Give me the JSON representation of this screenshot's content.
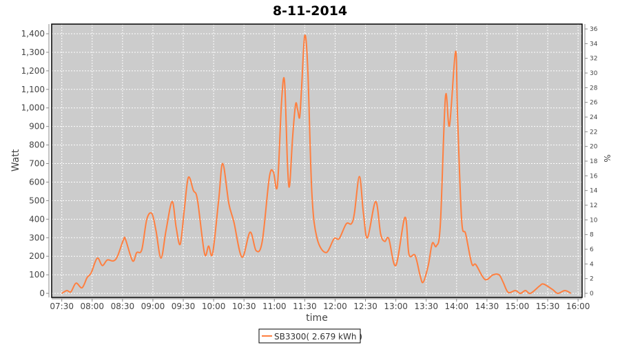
{
  "chart_data": {
    "type": "line",
    "title": "8-11-2014",
    "xlabel": "time",
    "ylabel": "Watt",
    "y2label": "%",
    "xlim": [
      "07:20",
      "16:04"
    ],
    "ylim": [
      -22,
      1452
    ],
    "y2lim": [
      -0.56,
      36.66
    ],
    "x_ticks": [
      "07:30",
      "08:00",
      "08:30",
      "09:00",
      "09:30",
      "10:00",
      "10:30",
      "11:00",
      "11:30",
      "12:00",
      "12:30",
      "13:00",
      "13:30",
      "14:00",
      "14:30",
      "15:00",
      "15:30",
      "16:00"
    ],
    "y_ticks": [
      0,
      100,
      200,
      300,
      400,
      500,
      600,
      700,
      800,
      900,
      1000,
      1100,
      1200,
      1300,
      1400
    ],
    "y2_ticks": [
      0,
      2,
      4,
      6,
      8,
      10,
      12,
      14,
      16,
      18,
      20,
      22,
      24,
      26,
      28,
      30,
      32,
      34,
      36
    ],
    "grid": true,
    "legend_position": "bottom",
    "colors": {
      "series": "#ff7f3f",
      "plot_background": "#cccccc",
      "grid": "#ffffff"
    },
    "series": [
      {
        "name": "SB3300( 2.679 kWh )",
        "x": [
          "07:30",
          "07:35",
          "07:39",
          "07:44",
          "07:50",
          "07:55",
          "07:59",
          "08:05",
          "08:10",
          "08:15",
          "08:21",
          "08:25",
          "08:31",
          "08:33",
          "08:40",
          "08:44",
          "08:49",
          "08:54",
          "08:59",
          "09:03",
          "09:08",
          "09:13",
          "09:19",
          "09:23",
          "09:27",
          "09:31",
          "09:35",
          "09:40",
          "09:44",
          "09:51",
          "09:55",
          "09:59",
          "10:05",
          "10:09",
          "10:15",
          "10:20",
          "10:28",
          "10:36",
          "10:42",
          "10:48",
          "10:55",
          "10:59",
          "11:03",
          "11:07",
          "11:10",
          "11:13",
          "11:15",
          "11:18",
          "11:21",
          "11:23",
          "11:25",
          "11:27",
          "11:30",
          "11:33",
          "11:37",
          "11:42",
          "11:51",
          "11:59",
          "12:04",
          "12:11",
          "12:16",
          "12:19",
          "12:24",
          "12:28",
          "12:32",
          "12:40",
          "12:45",
          "12:49",
          "12:53",
          "13:00",
          "13:09",
          "13:13",
          "13:19",
          "13:24",
          "13:27",
          "13:32",
          "13:36",
          "13:40",
          "13:44",
          "13:49",
          "13:53",
          "13:59",
          "14:01",
          "14:05",
          "14:09",
          "14:15",
          "14:19",
          "14:28",
          "14:36",
          "14:42",
          "14:46",
          "14:51",
          "14:58",
          "15:03",
          "15:08",
          "15:13",
          "15:22",
          "15:26",
          "15:35",
          "15:40",
          "15:47",
          "15:53"
        ],
        "values": [
          0,
          15,
          8,
          55,
          30,
          85,
          110,
          190,
          150,
          180,
          175,
          200,
          290,
          290,
          175,
          220,
          235,
          400,
          430,
          340,
          190,
          340,
          495,
          355,
          265,
          450,
          625,
          555,
          505,
          215,
          255,
          215,
          505,
          700,
          485,
          385,
          195,
          330,
          230,
          280,
          625,
          655,
          580,
          1025,
          1145,
          690,
          580,
          840,
          1020,
          990,
          950,
          1120,
          1390,
          1210,
          545,
          300,
          220,
          295,
          295,
          375,
          375,
          430,
          630,
          430,
          300,
          495,
          320,
          280,
          295,
          150,
          410,
          210,
          205,
          95,
          60,
          150,
          270,
          255,
          375,
          1060,
          905,
          1305,
          950,
          395,
          320,
          160,
          155,
          75,
          100,
          100,
          60,
          5,
          15,
          0,
          15,
          0,
          40,
          50,
          20,
          0,
          15,
          0
        ]
      }
    ]
  }
}
